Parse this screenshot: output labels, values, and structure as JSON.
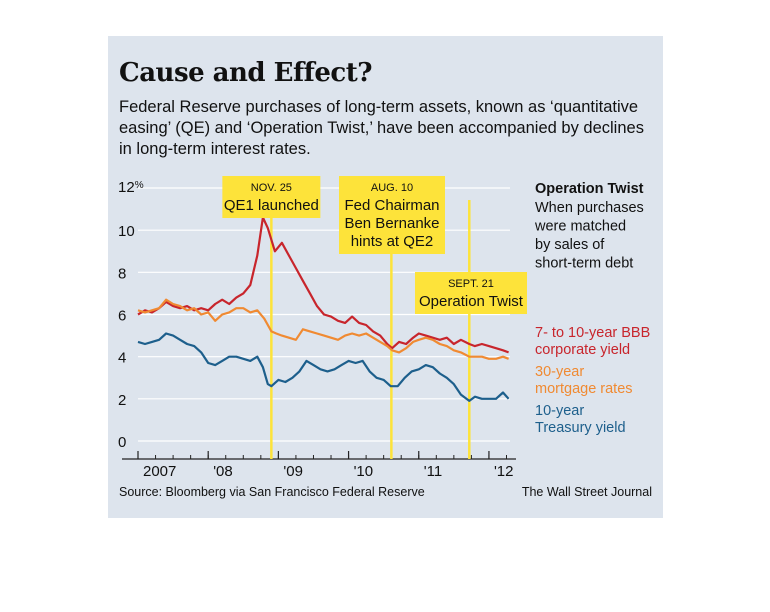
{
  "header": {
    "title": "Cause and Effect?",
    "subtitle": "Federal Reserve purchases of long-term assets, known as ‘quantitative easing’ (QE) and ‘Operation Twist,’ have been accompanied by declines in long-term interest rates."
  },
  "footer": {
    "source": "Source: Bloomberg via San Francisco Federal Reserve",
    "credit": "The Wall Street Journal"
  },
  "colors": {
    "background_panel": "#dde4ed",
    "bbb": "#c8252c",
    "mortgage": "#f08a32",
    "treasury": "#1d5f8c",
    "event_highlight": "#fde33a"
  },
  "chart_data": {
    "type": "line",
    "y_unit_label": "12%",
    "ylim": [
      0,
      12
    ],
    "yticks": [
      0,
      2,
      4,
      6,
      8,
      10,
      12
    ],
    "ytick_labels": [
      "0",
      "2",
      "4",
      "6",
      "8",
      "10",
      "12%"
    ],
    "xlim": [
      2007.0,
      2012.3
    ],
    "xticks": [
      2007,
      2008,
      2009,
      2010,
      2011,
      2012
    ],
    "xtick_labels": [
      "2007",
      "'08",
      "'09",
      "'10",
      "'11",
      "'12"
    ],
    "grid": true,
    "series": [
      {
        "name": "7- to 10-year BBB corporate yield",
        "legend_lines": [
          "7- to 10-year BBB",
          "corporate yield"
        ],
        "color": "#c8252c",
        "points": [
          [
            2007.0,
            6.0
          ],
          [
            2007.1,
            6.2
          ],
          [
            2007.2,
            6.1
          ],
          [
            2007.3,
            6.3
          ],
          [
            2007.4,
            6.6
          ],
          [
            2007.5,
            6.4
          ],
          [
            2007.6,
            6.3
          ],
          [
            2007.7,
            6.4
          ],
          [
            2007.8,
            6.2
          ],
          [
            2007.9,
            6.3
          ],
          [
            2008.0,
            6.2
          ],
          [
            2008.1,
            6.5
          ],
          [
            2008.2,
            6.7
          ],
          [
            2008.3,
            6.5
          ],
          [
            2008.4,
            6.8
          ],
          [
            2008.5,
            7.0
          ],
          [
            2008.6,
            7.4
          ],
          [
            2008.7,
            8.8
          ],
          [
            2008.78,
            10.6
          ],
          [
            2008.85,
            10.1
          ],
          [
            2008.95,
            9.0
          ],
          [
            2009.05,
            9.4
          ],
          [
            2009.15,
            8.8
          ],
          [
            2009.25,
            8.2
          ],
          [
            2009.35,
            7.6
          ],
          [
            2009.45,
            7.0
          ],
          [
            2009.55,
            6.4
          ],
          [
            2009.65,
            6.0
          ],
          [
            2009.75,
            5.9
          ],
          [
            2009.85,
            5.7
          ],
          [
            2009.95,
            5.6
          ],
          [
            2010.05,
            5.9
          ],
          [
            2010.15,
            5.6
          ],
          [
            2010.25,
            5.5
          ],
          [
            2010.35,
            5.2
          ],
          [
            2010.45,
            5.0
          ],
          [
            2010.55,
            4.6
          ],
          [
            2010.62,
            4.4
          ],
          [
            2010.72,
            4.7
          ],
          [
            2010.82,
            4.6
          ],
          [
            2010.92,
            4.9
          ],
          [
            2011.0,
            5.1
          ],
          [
            2011.1,
            5.0
          ],
          [
            2011.2,
            4.9
          ],
          [
            2011.3,
            4.8
          ],
          [
            2011.4,
            4.9
          ],
          [
            2011.5,
            4.6
          ],
          [
            2011.6,
            4.8
          ],
          [
            2011.72,
            4.6
          ],
          [
            2011.8,
            4.5
          ],
          [
            2011.9,
            4.6
          ],
          [
            2012.0,
            4.5
          ],
          [
            2012.1,
            4.4
          ],
          [
            2012.2,
            4.3
          ],
          [
            2012.28,
            4.2
          ]
        ]
      },
      {
        "name": "30-year mortgage rates",
        "legend_lines": [
          "30-year",
          "mortgage rates"
        ],
        "color": "#f08a32",
        "points": [
          [
            2007.0,
            6.2
          ],
          [
            2007.1,
            6.1
          ],
          [
            2007.2,
            6.2
          ],
          [
            2007.3,
            6.3
          ],
          [
            2007.4,
            6.7
          ],
          [
            2007.5,
            6.5
          ],
          [
            2007.6,
            6.4
          ],
          [
            2007.7,
            6.2
          ],
          [
            2007.8,
            6.3
          ],
          [
            2007.9,
            6.0
          ],
          [
            2008.0,
            6.1
          ],
          [
            2008.1,
            5.7
          ],
          [
            2008.2,
            6.0
          ],
          [
            2008.3,
            6.1
          ],
          [
            2008.4,
            6.3
          ],
          [
            2008.5,
            6.3
          ],
          [
            2008.6,
            6.1
          ],
          [
            2008.7,
            6.2
          ],
          [
            2008.8,
            5.8
          ],
          [
            2008.9,
            5.2
          ],
          [
            2008.97,
            5.1
          ],
          [
            2009.05,
            5.0
          ],
          [
            2009.15,
            4.9
          ],
          [
            2009.25,
            4.8
          ],
          [
            2009.35,
            5.3
          ],
          [
            2009.45,
            5.2
          ],
          [
            2009.55,
            5.1
          ],
          [
            2009.65,
            5.0
          ],
          [
            2009.75,
            4.9
          ],
          [
            2009.85,
            4.8
          ],
          [
            2009.95,
            5.0
          ],
          [
            2010.05,
            5.1
          ],
          [
            2010.15,
            5.0
          ],
          [
            2010.25,
            5.1
          ],
          [
            2010.35,
            4.9
          ],
          [
            2010.45,
            4.7
          ],
          [
            2010.55,
            4.5
          ],
          [
            2010.62,
            4.3
          ],
          [
            2010.72,
            4.2
          ],
          [
            2010.82,
            4.4
          ],
          [
            2010.92,
            4.7
          ],
          [
            2011.0,
            4.8
          ],
          [
            2011.1,
            4.9
          ],
          [
            2011.2,
            4.8
          ],
          [
            2011.3,
            4.6
          ],
          [
            2011.4,
            4.5
          ],
          [
            2011.5,
            4.3
          ],
          [
            2011.6,
            4.2
          ],
          [
            2011.72,
            4.0
          ],
          [
            2011.8,
            4.0
          ],
          [
            2011.9,
            4.0
          ],
          [
            2012.0,
            3.9
          ],
          [
            2012.1,
            3.9
          ],
          [
            2012.2,
            4.0
          ],
          [
            2012.28,
            3.9
          ]
        ]
      },
      {
        "name": "10-year Treasury yield",
        "legend_lines": [
          "10-year",
          "Treasury yield"
        ],
        "color": "#1d5f8c",
        "points": [
          [
            2007.0,
            4.7
          ],
          [
            2007.1,
            4.6
          ],
          [
            2007.2,
            4.7
          ],
          [
            2007.3,
            4.8
          ],
          [
            2007.4,
            5.1
          ],
          [
            2007.5,
            5.0
          ],
          [
            2007.6,
            4.8
          ],
          [
            2007.7,
            4.6
          ],
          [
            2007.8,
            4.5
          ],
          [
            2007.9,
            4.2
          ],
          [
            2008.0,
            3.7
          ],
          [
            2008.1,
            3.6
          ],
          [
            2008.2,
            3.8
          ],
          [
            2008.3,
            4.0
          ],
          [
            2008.4,
            4.0
          ],
          [
            2008.5,
            3.9
          ],
          [
            2008.6,
            3.8
          ],
          [
            2008.7,
            4.0
          ],
          [
            2008.78,
            3.5
          ],
          [
            2008.85,
            2.7
          ],
          [
            2008.9,
            2.6
          ],
          [
            2009.0,
            2.9
          ],
          [
            2009.1,
            2.8
          ],
          [
            2009.2,
            3.0
          ],
          [
            2009.3,
            3.3
          ],
          [
            2009.4,
            3.8
          ],
          [
            2009.5,
            3.6
          ],
          [
            2009.6,
            3.4
          ],
          [
            2009.7,
            3.3
          ],
          [
            2009.8,
            3.4
          ],
          [
            2009.9,
            3.6
          ],
          [
            2010.0,
            3.8
          ],
          [
            2010.1,
            3.7
          ],
          [
            2010.2,
            3.8
          ],
          [
            2010.3,
            3.3
          ],
          [
            2010.4,
            3.0
          ],
          [
            2010.5,
            2.9
          ],
          [
            2010.6,
            2.6
          ],
          [
            2010.7,
            2.6
          ],
          [
            2010.8,
            3.0
          ],
          [
            2010.9,
            3.3
          ],
          [
            2011.0,
            3.4
          ],
          [
            2011.1,
            3.6
          ],
          [
            2011.2,
            3.5
          ],
          [
            2011.3,
            3.2
          ],
          [
            2011.4,
            3.0
          ],
          [
            2011.5,
            2.7
          ],
          [
            2011.6,
            2.2
          ],
          [
            2011.72,
            1.9
          ],
          [
            2011.8,
            2.1
          ],
          [
            2011.9,
            2.0
          ],
          [
            2012.0,
            2.0
          ],
          [
            2012.1,
            2.0
          ],
          [
            2012.2,
            2.3
          ],
          [
            2012.28,
            2.0
          ]
        ]
      }
    ],
    "events": [
      {
        "x": 2008.9,
        "date": "NOV. 25",
        "lines": [
          "QE1 launched"
        ]
      },
      {
        "x": 2010.61,
        "date": "AUG. 10",
        "lines": [
          "Fed Chairman",
          "Ben Bernanke",
          "hints at QE2"
        ]
      },
      {
        "x": 2011.72,
        "date": "SEPT. 21",
        "lines": [
          "Operation Twist"
        ]
      }
    ],
    "side_note": {
      "heading": "Operation Twist",
      "lines": [
        "When purchases",
        "were matched",
        "by sales of",
        "short-term debt"
      ]
    }
  }
}
